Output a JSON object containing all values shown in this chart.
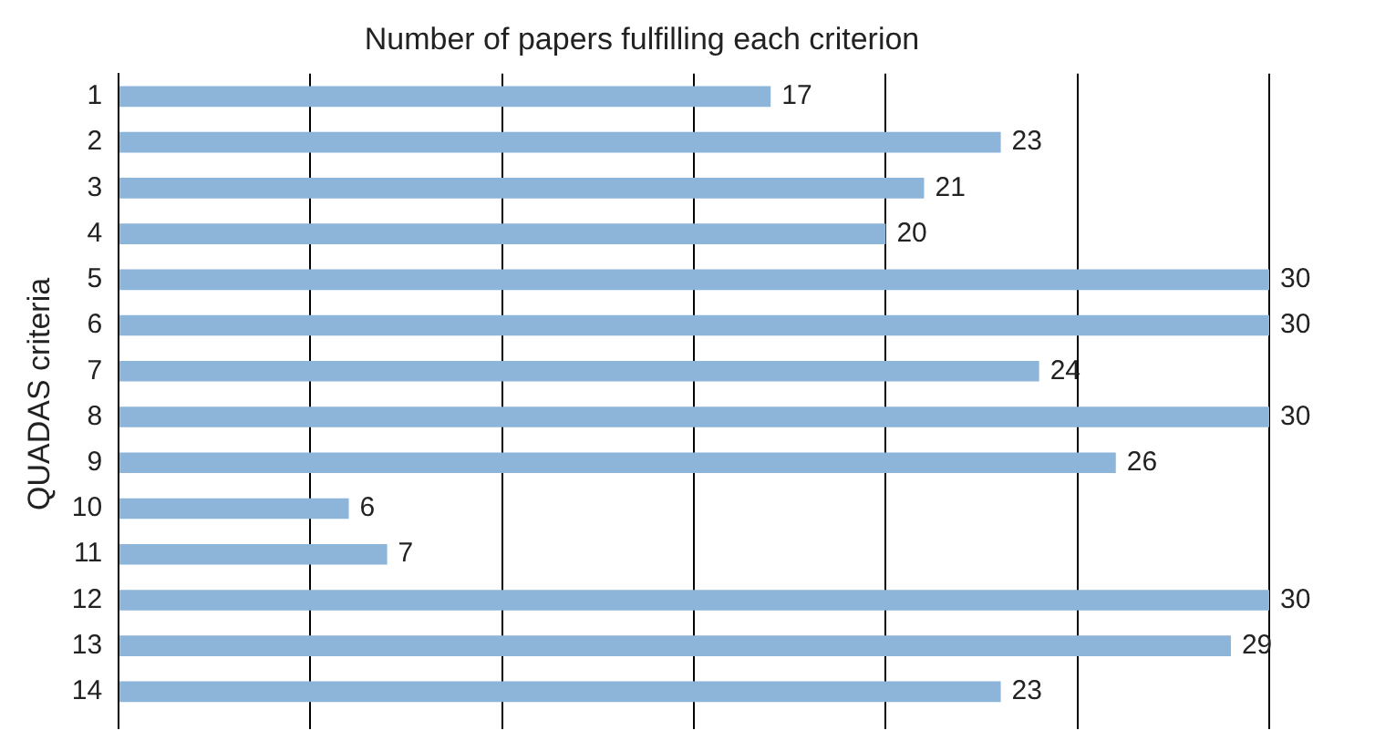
{
  "chart_data": {
    "type": "bar",
    "orientation": "horizontal",
    "title": "Number of papers fulfilling each criterion",
    "ylabel": "QUADAS criteria",
    "categories": [
      "1",
      "2",
      "3",
      "4",
      "5",
      "6",
      "7",
      "8",
      "9",
      "10",
      "11",
      "12",
      "13",
      "14"
    ],
    "values": [
      17,
      23,
      21,
      20,
      30,
      30,
      24,
      30,
      26,
      6,
      7,
      30,
      29,
      23
    ],
    "color": "#8db4d9",
    "data_labels": true,
    "grid": "x",
    "tick_labels": "y",
    "legend": false,
    "xlim": [
      0,
      30
    ],
    "xticks": [
      {
        "value": 0,
        "label": null
      },
      {
        "value": 5,
        "label": null
      },
      {
        "value": 10,
        "label": null
      },
      {
        "value": 15,
        "label": null
      },
      {
        "value": 20,
        "label": null
      },
      {
        "value": 25,
        "label": null
      },
      {
        "value": 30,
        "label": null
      }
    ]
  }
}
